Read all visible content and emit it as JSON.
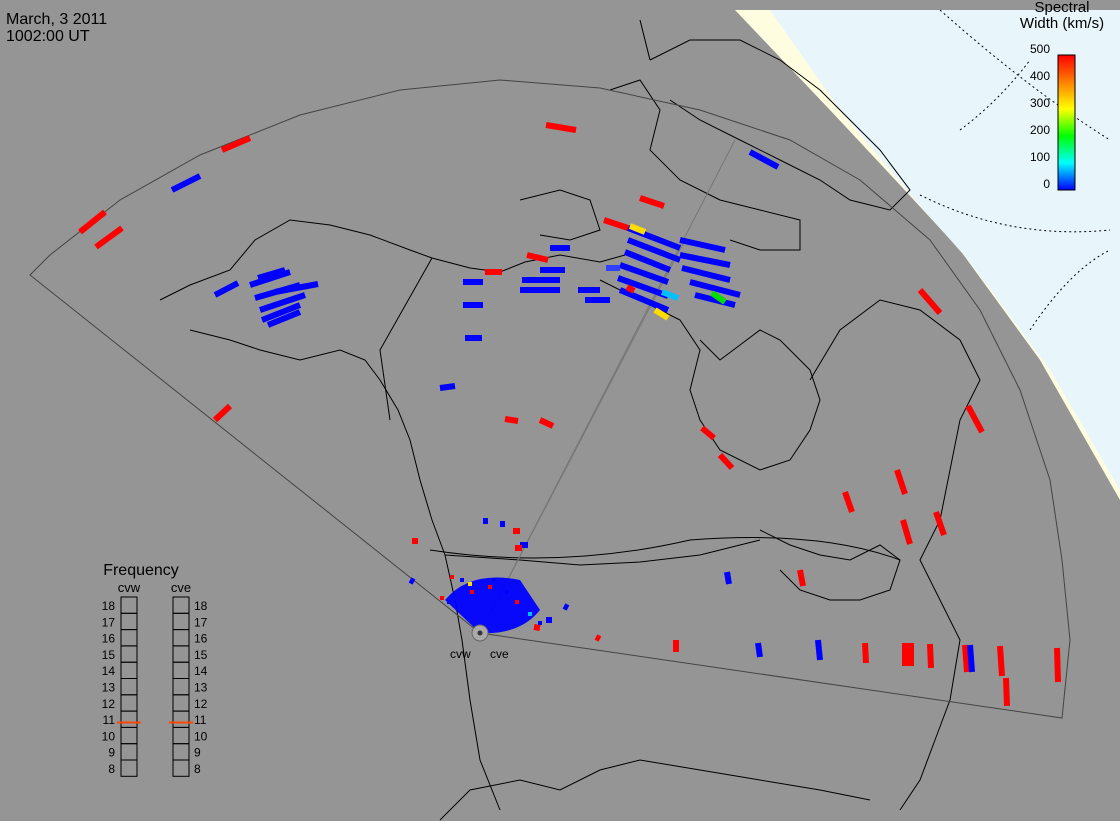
{
  "header": {
    "date": "March, 3 2011",
    "time": "1002:00 UT"
  },
  "colorbar": {
    "title_line1": "Spectral",
    "title_line2": "Width (km/s)",
    "ticks": [
      "500",
      "400",
      "300",
      "200",
      "100",
      "0"
    ],
    "gradient": [
      "#ff0000",
      "#ff7f00",
      "#ffff00",
      "#00ff00",
      "#00ffff",
      "#0000ff"
    ]
  },
  "stations": {
    "west": "cvw",
    "east": "cve"
  },
  "frequency": {
    "title": "Frequency",
    "west_label": "cvw",
    "east_label": "cve",
    "scale": [
      "18",
      "17",
      "16",
      "15",
      "14",
      "13",
      "12",
      "11",
      "10",
      "9",
      "8"
    ],
    "west_value_mhz": 10.8,
    "east_value_mhz": 10.8,
    "marker_color": "#ff4500"
  },
  "colors": {
    "background": "#959595",
    "daylight": "#fffde0",
    "polar": "#e8f6fc",
    "low_width": "#0000ff",
    "high_width": "#ff0000"
  }
}
